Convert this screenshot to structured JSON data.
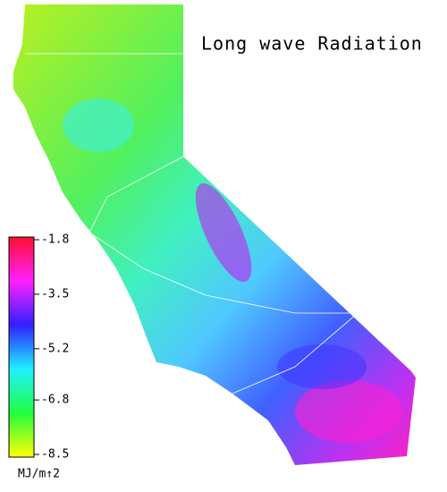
{
  "title": "Long wave Radiation",
  "legend": {
    "title": "MJ/m↑2",
    "lim": [
      -8.5,
      -1.8
    ],
    "ticks": [
      -1.8,
      -3.5,
      -5.2,
      -6.8,
      -8.5
    ],
    "colors": [
      "#ff1030",
      "#ff20ff",
      "#3020ff",
      "#20f0ff",
      "#20ff40",
      "#ffff00"
    ]
  }
}
